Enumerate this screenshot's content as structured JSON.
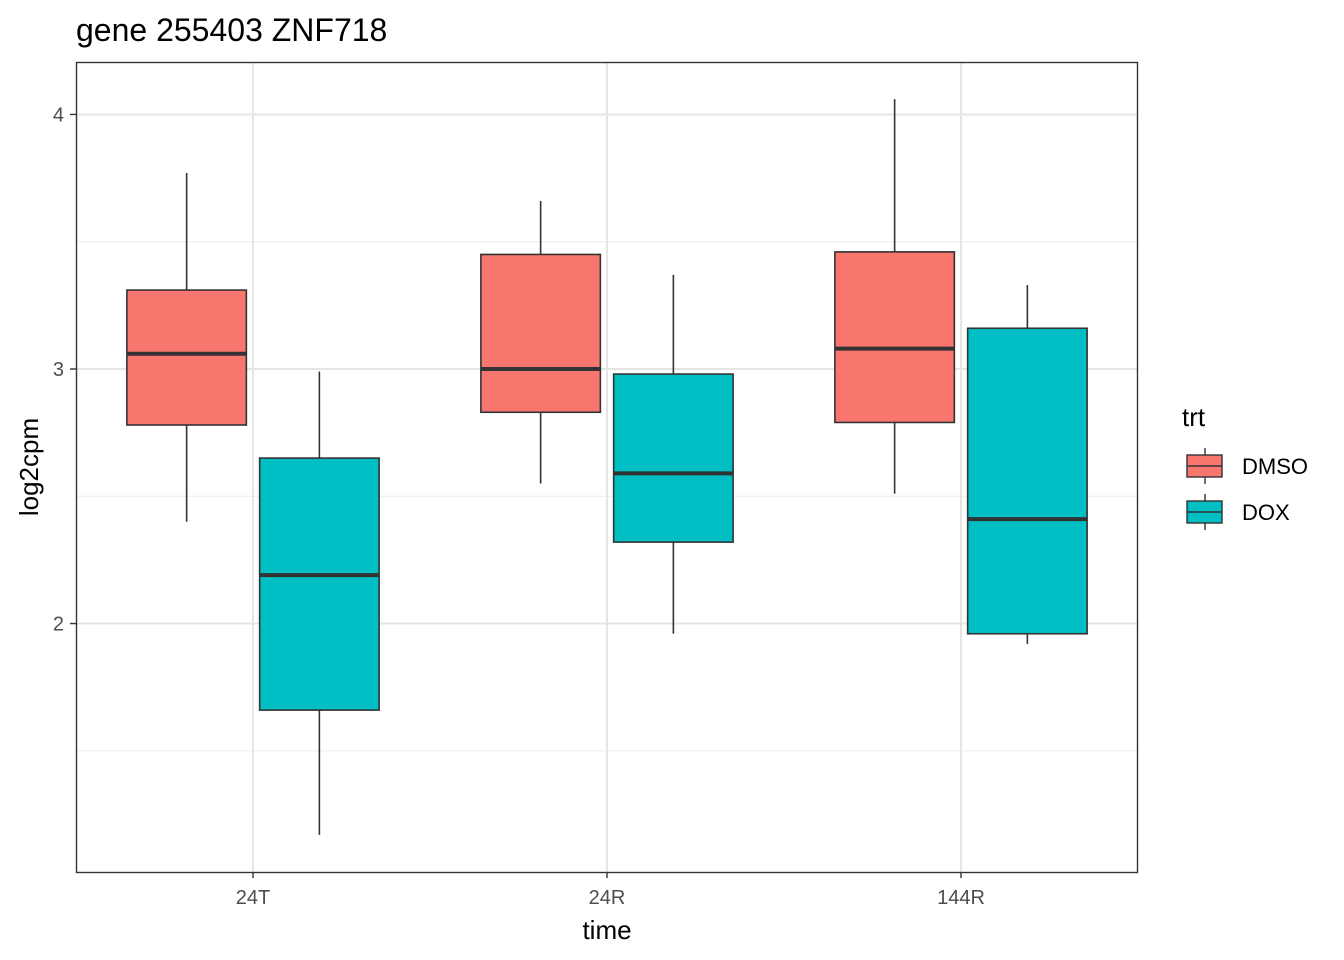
{
  "chart_data": {
    "type": "boxplot",
    "title": "gene 255403 ZNF718",
    "xlabel": "time",
    "ylabel": "log2cpm",
    "categories": [
      "24T",
      "24R",
      "144R"
    ],
    "ylim": [
      1.024,
      4.206
    ],
    "yticks": [
      2,
      3,
      4
    ],
    "grid": true,
    "legend": {
      "title": "trt",
      "position": "right"
    },
    "series": [
      {
        "name": "DMSO",
        "color": "#F8766D",
        "boxes": [
          {
            "whisker_low": 2.4,
            "q1": 2.78,
            "median": 3.06,
            "q3": 3.31,
            "whisker_high": 3.77
          },
          {
            "whisker_low": 2.55,
            "q1": 2.83,
            "median": 3.0,
            "q3": 3.45,
            "whisker_high": 3.66
          },
          {
            "whisker_low": 2.51,
            "q1": 2.79,
            "median": 3.08,
            "q3": 3.46,
            "whisker_high": 4.06
          }
        ]
      },
      {
        "name": "DOX",
        "color": "#00BFC4",
        "boxes": [
          {
            "whisker_low": 1.17,
            "q1": 1.66,
            "median": 2.19,
            "q3": 2.65,
            "whisker_high": 2.99
          },
          {
            "whisker_low": 1.96,
            "q1": 2.32,
            "median": 2.59,
            "q3": 2.98,
            "whisker_high": 3.37
          },
          {
            "whisker_low": 1.92,
            "q1": 1.96,
            "median": 2.41,
            "q3": 3.16,
            "whisker_high": 3.33
          }
        ]
      }
    ]
  }
}
